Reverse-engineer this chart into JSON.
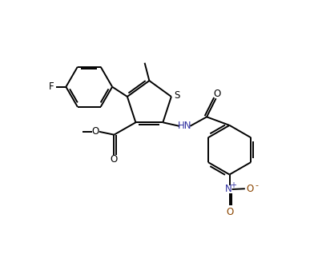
{
  "bg_color": "#ffffff",
  "line_color": "#000000",
  "N_color": "#3030a0",
  "O_color": "#8b4500",
  "line_width": 1.4,
  "fig_width": 3.92,
  "fig_height": 3.33,
  "xlim": [
    0,
    9.5
  ],
  "ylim": [
    0,
    8.5
  ]
}
